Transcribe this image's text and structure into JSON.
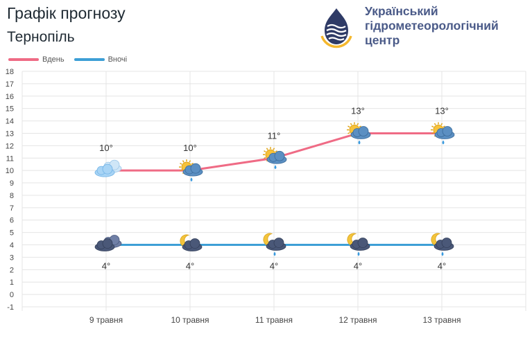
{
  "header": {
    "title": "Графік прогнозу",
    "city": "Тернопіль",
    "org_line1": "Український",
    "org_line2": "гідрометеорологічний",
    "org_line3": "центр"
  },
  "colors": {
    "day": "#ef6b85",
    "night": "#3d9fd6",
    "grid": "#e4e4e4",
    "text": "#333333"
  },
  "chart_data": {
    "type": "line",
    "categories": [
      "9 травня",
      "10 травня",
      "11 травня",
      "12 травня",
      "13 травня"
    ],
    "series": [
      {
        "name": "Вдень",
        "values": [
          10,
          10,
          11,
          13,
          13
        ],
        "labels": [
          "10°",
          "10°",
          "11°",
          "13°",
          "13°"
        ],
        "icons": [
          "cloud-icon",
          "partly-cloudy-rain-icon",
          "partly-cloudy-rain-icon",
          "partly-cloudy-rain-icon",
          "partly-cloudy-rain-icon"
        ]
      },
      {
        "name": "Вночі",
        "values": [
          4,
          4,
          4,
          4,
          4
        ],
        "labels": [
          "4°",
          "4°",
          "4°",
          "4°",
          "4°"
        ],
        "icons": [
          "night-cloud-icon",
          "night-partly-cloudy-icon",
          "night-cloudy-rain-icon",
          "night-cloudy-rain-icon",
          "night-cloudy-rain-icon"
        ]
      }
    ],
    "ylim": [
      -1,
      18
    ],
    "yticks": [
      "-1",
      "0",
      "1",
      "2",
      "3",
      "4",
      "5",
      "6",
      "7",
      "8",
      "9",
      "10",
      "11",
      "12",
      "13",
      "14",
      "15",
      "16",
      "17",
      "18"
    ],
    "grid": true,
    "legend": "top-left"
  }
}
